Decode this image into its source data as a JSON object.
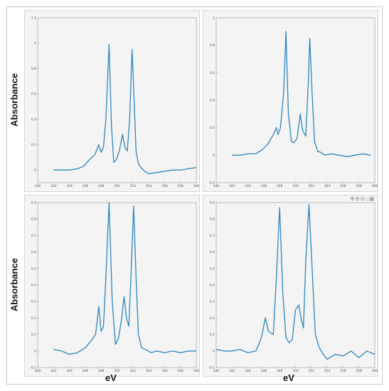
{
  "labels": {
    "ylabel_top": "Absorbance",
    "ylabel_bottom": "Absorbance",
    "xlabel_left": "eV",
    "xlabel_right": "eV"
  },
  "toolbar_icons": [
    "pan-icon",
    "zoom-in-icon",
    "zoom-out-icon",
    "home-icon",
    "save-icon"
  ],
  "colors": {
    "series": "#2e86c1",
    "plot_bg": "#ffffff",
    "panel_bg": "#f4f4f4"
  },
  "chart_data": [
    {
      "type": "line",
      "xlim": [
        340,
        360
      ],
      "ylim": [
        -0.1,
        1.2
      ],
      "xticks": [
        340,
        342,
        344,
        346,
        348,
        350,
        352,
        354,
        356,
        358,
        360
      ],
      "yticks": [
        0,
        0.2,
        0.4,
        0.6,
        0.8,
        1,
        1.2
      ],
      "ytick_labels": [
        "0",
        "0.2",
        "0.4",
        "0.6",
        "0.8",
        "1",
        "1.2"
      ],
      "grid": false,
      "series": [
        {
          "x": [
            342,
            343,
            344,
            345,
            345.8,
            346.5,
            347.2,
            347.7,
            348,
            348.3,
            348.6,
            349,
            349.3,
            349.6,
            349.9,
            350.3,
            350.7,
            351,
            351.3,
            351.6,
            351.9,
            352.1,
            352.4,
            352.7,
            353,
            353.5,
            354,
            355,
            356,
            357,
            358,
            359,
            360
          ],
          "y": [
            0.0,
            0.0,
            0.0,
            0.01,
            0.03,
            0.08,
            0.12,
            0.2,
            0.14,
            0.18,
            0.4,
            0.99,
            0.35,
            0.06,
            0.08,
            0.15,
            0.28,
            0.18,
            0.15,
            0.4,
            0.95,
            0.65,
            0.15,
            0.05,
            0.02,
            -0.01,
            -0.03,
            -0.02,
            -0.01,
            0.0,
            0.0,
            0.01,
            0.02
          ]
        }
      ]
    },
    {
      "type": "line",
      "xlim": [
        340,
        360
      ],
      "ylim": [
        -0.2,
        1.0
      ],
      "xticks": [
        340,
        342,
        344,
        346,
        348,
        350,
        352,
        354,
        356,
        358,
        360
      ],
      "yticks": [
        -0.2,
        0,
        0.2,
        0.4,
        0.6,
        0.8,
        1
      ],
      "ytick_labels": [
        "-0.2",
        "0",
        "0.2",
        "0.4",
        "0.6",
        "0.8",
        "1"
      ],
      "grid": false,
      "series": [
        {
          "x": [
            342,
            343,
            344,
            345,
            345.8,
            346.5,
            347.2,
            347.6,
            347.8,
            348.1,
            348.5,
            348.8,
            349.1,
            349.5,
            349.8,
            350.2,
            350.6,
            350.9,
            351.3,
            351.6,
            351.8,
            352.1,
            352.4,
            352.8,
            353.2,
            353.7,
            354.5,
            355.5,
            356.5,
            357.5,
            358.5,
            359.5
          ],
          "y": [
            0.0,
            0.0,
            0.01,
            0.01,
            0.04,
            0.08,
            0.15,
            0.2,
            0.15,
            0.2,
            0.45,
            0.9,
            0.3,
            0.1,
            0.09,
            0.12,
            0.3,
            0.18,
            0.14,
            0.5,
            0.85,
            0.45,
            0.1,
            0.03,
            0.02,
            0.0,
            0.01,
            0.0,
            -0.01,
            0.0,
            0.01,
            0.0
          ]
        }
      ]
    },
    {
      "type": "line",
      "xlim": [
        340,
        360
      ],
      "ylim": [
        -0.1,
        0.9
      ],
      "xticks": [
        340,
        342,
        344,
        346,
        348,
        350,
        352,
        354,
        356,
        358,
        360
      ],
      "yticks": [
        -0.1,
        0,
        0.1,
        0.2,
        0.3,
        0.4,
        0.5,
        0.6,
        0.7,
        0.8,
        0.9
      ],
      "ytick_labels": [
        "-0.1",
        "0",
        "0.1",
        "0.2",
        "0.3",
        "0.4",
        "0.5",
        "0.6",
        "0.7",
        "0.8",
        "0.9"
      ],
      "grid": false,
      "series": [
        {
          "x": [
            342,
            343,
            344,
            345,
            346,
            346.7,
            347.3,
            347.7,
            348,
            348.3,
            348.6,
            349,
            349.4,
            349.8,
            350.2,
            350.6,
            350.9,
            351.2,
            351.5,
            351.8,
            352.1,
            352.4,
            352.7,
            353.1,
            353.6,
            354.3,
            355,
            356,
            357,
            358,
            359,
            360
          ],
          "y": [
            0.01,
            0.0,
            -0.02,
            -0.01,
            0.02,
            0.06,
            0.1,
            0.27,
            0.12,
            0.15,
            0.45,
            0.9,
            0.3,
            0.04,
            0.08,
            0.2,
            0.33,
            0.2,
            0.15,
            0.5,
            0.88,
            0.45,
            0.1,
            0.02,
            0.01,
            -0.01,
            0.0,
            -0.01,
            0.0,
            -0.01,
            0.0,
            0.0
          ]
        }
      ]
    },
    {
      "type": "line",
      "xlim": [
        340,
        360
      ],
      "ylim": [
        -0.1,
        0.9
      ],
      "xticks": [
        340,
        342,
        344,
        346,
        348,
        350,
        352,
        354,
        356,
        358,
        360
      ],
      "yticks": [
        -0.1,
        0,
        0.1,
        0.2,
        0.3,
        0.4,
        0.5,
        0.6,
        0.7,
        0.8,
        0.9
      ],
      "ytick_labels": [
        "-0.1",
        "0",
        "0.1",
        "0.2",
        "0.3",
        "0.4",
        "0.5",
        "0.6",
        "0.7",
        "0.8",
        "0.9"
      ],
      "grid": false,
      "series": [
        {
          "x": [
            340,
            341,
            342,
            343,
            344,
            345,
            345.7,
            346.2,
            346.6,
            347.2,
            347.6,
            348,
            348.4,
            348.8,
            349.2,
            349.6,
            350,
            350.4,
            350.7,
            351,
            351.3,
            351.7,
            352.1,
            352.5,
            353,
            353.5,
            354,
            355,
            356,
            357,
            358,
            359,
            360
          ],
          "y": [
            0.01,
            0.0,
            0.0,
            0.01,
            -0.01,
            0.0,
            0.08,
            0.2,
            0.12,
            0.1,
            0.45,
            0.87,
            0.35,
            0.08,
            0.05,
            0.07,
            0.25,
            0.28,
            0.2,
            0.14,
            0.55,
            0.89,
            0.5,
            0.1,
            0.02,
            -0.02,
            -0.05,
            -0.02,
            -0.03,
            0.0,
            -0.04,
            0.0,
            -0.02
          ]
        }
      ]
    }
  ]
}
